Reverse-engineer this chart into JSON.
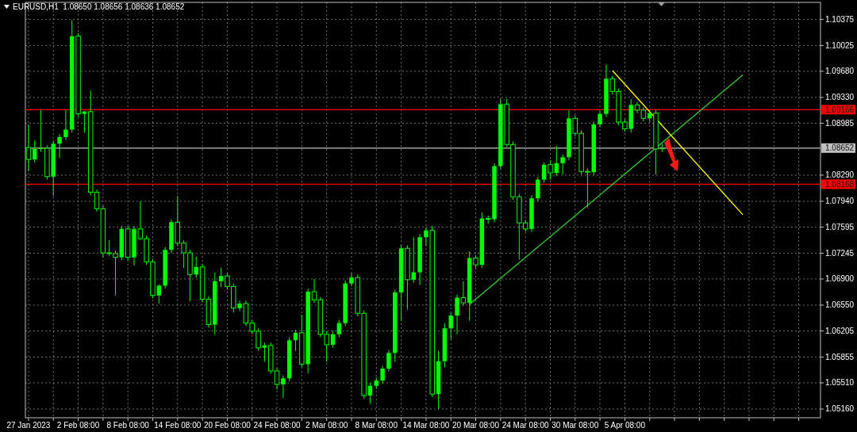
{
  "chart_data": {
    "type": "candlestick",
    "title": "EURUSD,H1  1.08650 1.08656 1.08636 1.08652",
    "color": "#00ff00",
    "grid": true,
    "ylim": [
      1.05043,
      1.10602
    ],
    "yticks": [
      {
        "value": 1.0516,
        "label": "1.05160"
      },
      {
        "value": 1.0551,
        "label": "1.05510"
      },
      1.05855,
      1.06205,
      {
        "value": 1.0655,
        "label": "1.06550"
      },
      {
        "value": 1.069,
        "label": "1.06900"
      },
      1.07245,
      1.07595,
      {
        "value": 1.0794,
        "label": "1.07940"
      },
      {
        "value": 1.0829,
        "label": "1.08290"
      },
      1.08985,
      {
        "value": 1.0933,
        "label": "1.09330"
      },
      {
        "value": 1.0968,
        "label": "1.09680"
      },
      1.10025,
      1.10375
    ],
    "ref_lines": [
      {
        "axis": "y",
        "value": 1.09166,
        "label": "1.09166",
        "color": "#ff0000"
      },
      {
        "axis": "y",
        "value": 1.08168,
        "label": "1.08168",
        "color": "#ff0000"
      },
      {
        "axis": "y",
        "value": 1.08652,
        "label": "1.08652",
        "color": "#c0c0c0"
      }
    ],
    "categories": [
      "27 Jan 2023",
      null,
      null,
      null,
      null,
      null,
      null,
      null,
      "2 Feb 08:00",
      null,
      null,
      null,
      null,
      null,
      null,
      null,
      "8 Feb 08:00",
      null,
      null,
      null,
      null,
      null,
      null,
      null,
      "14 Feb 08:00",
      null,
      null,
      null,
      null,
      null,
      null,
      null,
      "20 Feb 08:00",
      null,
      null,
      null,
      null,
      null,
      null,
      null,
      "24 Feb 08:00",
      null,
      null,
      null,
      null,
      null,
      null,
      null,
      "2 Mar 08:00",
      null,
      null,
      null,
      null,
      null,
      null,
      null,
      "8 Mar 08:00",
      null,
      null,
      null,
      null,
      null,
      null,
      null,
      "14 Mar 08:00",
      null,
      null,
      null,
      null,
      null,
      null,
      null,
      "20 Mar 08:00",
      null,
      null,
      null,
      null,
      null,
      null,
      null,
      "24 Mar 08:00",
      null,
      null,
      null,
      null,
      null,
      null,
      null,
      "30 Mar 08:00",
      null,
      null,
      null,
      null,
      null,
      null,
      null,
      "5 Apr 08:00",
      null,
      null,
      null,
      null,
      null,
      null,
      null,
      null,
      null,
      null,
      null,
      null,
      null,
      null,
      null,
      null,
      null,
      null,
      null,
      null,
      null,
      null,
      null,
      null,
      null,
      null,
      null,
      null,
      null,
      null,
      null
    ],
    "series": [
      {
        "type": "line",
        "color": "#32cd32",
        "values": [
          null,
          null,
          null,
          null,
          null,
          null,
          null,
          null,
          null,
          null,
          null,
          null,
          null,
          null,
          null,
          null,
          null,
          null,
          null,
          null,
          null,
          null,
          null,
          null,
          null,
          null,
          null,
          null,
          null,
          null,
          null,
          null,
          null,
          null,
          null,
          null,
          null,
          null,
          null,
          null,
          null,
          null,
          null,
          null,
          null,
          null,
          null,
          null,
          null,
          null,
          null,
          null,
          null,
          null,
          null,
          null,
          null,
          null,
          null,
          null,
          null,
          null,
          null,
          null,
          null,
          null,
          null,
          null,
          null,
          null,
          null,
          1.0656,
          null,
          null,
          null,
          null,
          null,
          null,
          null,
          null,
          null,
          null,
          null,
          null,
          null,
          null,
          null,
          null,
          null,
          null,
          null,
          null,
          null,
          null,
          null,
          null,
          null,
          null,
          null,
          null,
          null,
          null,
          null,
          null,
          null,
          null,
          null,
          null,
          null,
          null,
          null,
          null,
          null,
          null,
          null,
          1.0963,
          null,
          null,
          null,
          null,
          null,
          null,
          null,
          null,
          null,
          null,
          null,
          null
        ]
      },
      {
        "type": "line",
        "color": "#ffff00",
        "values": [
          null,
          null,
          null,
          null,
          null,
          null,
          null,
          null,
          null,
          null,
          null,
          null,
          null,
          null,
          null,
          null,
          null,
          null,
          null,
          null,
          null,
          null,
          null,
          null,
          null,
          null,
          null,
          null,
          null,
          null,
          null,
          null,
          null,
          null,
          null,
          null,
          null,
          null,
          null,
          null,
          null,
          null,
          null,
          null,
          null,
          null,
          null,
          null,
          null,
          null,
          null,
          null,
          null,
          null,
          null,
          null,
          null,
          null,
          null,
          null,
          null,
          null,
          null,
          null,
          null,
          null,
          null,
          null,
          null,
          null,
          null,
          null,
          null,
          null,
          null,
          null,
          null,
          null,
          null,
          null,
          null,
          null,
          null,
          null,
          null,
          null,
          null,
          null,
          null,
          null,
          null,
          null,
          null,
          null,
          1.0969,
          null,
          null,
          null,
          null,
          null,
          null,
          null,
          null,
          null,
          null,
          null,
          null,
          null,
          null,
          null,
          null,
          null,
          null,
          null,
          null,
          1.0776,
          null,
          null,
          null,
          null,
          null,
          null,
          null,
          null,
          null,
          null,
          null,
          null
        ]
      }
    ],
    "ohlc": [
      [
        1.0866,
        1.0897,
        1.0834,
        1.085
      ],
      [
        1.085,
        1.0875,
        1.0846,
        1.0864
      ],
      [
        1.0864,
        1.0916,
        1.086,
        1.0865
      ],
      [
        1.0865,
        1.0869,
        1.0823,
        1.0827
      ],
      [
        1.0827,
        1.0875,
        1.0801,
        1.0871
      ],
      [
        1.0871,
        1.0884,
        1.0852,
        1.088
      ],
      [
        1.088,
        1.0916,
        1.0876,
        1.089
      ],
      [
        1.089,
        1.1036,
        1.0886,
        1.1015
      ],
      [
        1.1015,
        1.1019,
        1.0907,
        1.0911
      ],
      [
        1.0911,
        1.0915,
        1.0886,
        1.0914
      ],
      [
        1.0914,
        1.0942,
        1.0802,
        1.0806
      ],
      [
        1.0806,
        1.081,
        1.078,
        1.0784
      ],
      [
        1.0784,
        1.0788,
        1.0719,
        1.0725
      ],
      [
        1.0725,
        1.0742,
        1.0721,
        1.0724
      ],
      [
        1.0724,
        1.0728,
        1.0668,
        1.0719
      ],
      [
        1.0719,
        1.0761,
        1.0715,
        1.0757
      ],
      [
        1.0757,
        1.0761,
        1.0715,
        1.0719
      ],
      [
        1.0719,
        1.0761,
        1.0708,
        1.0757
      ],
      [
        1.0757,
        1.0794,
        1.0742,
        1.0744
      ],
      [
        1.0744,
        1.0748,
        1.0709,
        1.0713
      ],
      [
        1.0713,
        1.0717,
        1.0664,
        1.0668
      ],
      [
        1.0668,
        1.0683,
        1.0657,
        1.0681
      ],
      [
        1.0681,
        1.0733,
        1.0677,
        1.0729
      ],
      [
        1.0729,
        1.077,
        1.0725,
        1.0766
      ],
      [
        1.0766,
        1.0801,
        1.0734,
        1.0738
      ],
      [
        1.0738,
        1.0742,
        1.0705,
        1.0725
      ],
      [
        1.0725,
        1.0729,
        1.066,
        1.0696
      ],
      [
        1.0696,
        1.072,
        1.0692,
        1.0706
      ],
      [
        1.0706,
        1.071,
        1.0659,
        1.0663
      ],
      [
        1.0663,
        1.0667,
        1.0625,
        1.0629
      ],
      [
        1.0629,
        1.0698,
        1.0616,
        1.0687
      ],
      [
        1.0687,
        1.0705,
        1.0679,
        1.0694
      ],
      [
        1.0694,
        1.0698,
        1.0676,
        1.068
      ],
      [
        1.068,
        1.0684,
        1.0645,
        1.0651
      ],
      [
        1.0651,
        1.0661,
        1.0647,
        1.0657
      ],
      [
        1.0657,
        1.0661,
        1.0627,
        1.0631
      ],
      [
        1.0631,
        1.0635,
        1.0616,
        1.062
      ],
      [
        1.062,
        1.0624,
        1.0594,
        1.0598
      ],
      [
        1.0598,
        1.0605,
        1.0579,
        1.0601
      ],
      [
        1.0601,
        1.0605,
        1.0563,
        1.0567
      ],
      [
        1.0567,
        1.0571,
        1.0542,
        1.0549
      ],
      [
        1.0549,
        1.0561,
        1.0531,
        1.0557
      ],
      [
        1.0557,
        1.0612,
        1.0553,
        1.0608
      ],
      [
        1.0608,
        1.0622,
        1.0594,
        1.0618
      ],
      [
        1.0618,
        1.0642,
        1.0572,
        1.0576
      ],
      [
        1.0576,
        1.0677,
        1.0564,
        1.0673
      ],
      [
        1.0673,
        1.069,
        1.0658,
        1.0662
      ],
      [
        1.0662,
        1.0666,
        1.0612,
        1.0616
      ],
      [
        1.0616,
        1.062,
        1.0579,
        1.0602
      ],
      [
        1.0602,
        1.062,
        1.0598,
        1.0616
      ],
      [
        1.0616,
        1.0635,
        1.0612,
        1.0631
      ],
      [
        1.0631,
        1.0688,
        1.0627,
        1.0684
      ],
      [
        1.0684,
        1.0698,
        1.068,
        1.0692
      ],
      [
        1.0692,
        1.0696,
        1.064,
        1.0644
      ],
      [
        1.0644,
        1.0648,
        1.053,
        1.0534
      ],
      [
        1.0534,
        1.0551,
        1.0523,
        1.0547
      ],
      [
        1.0547,
        1.0558,
        1.0543,
        1.0554
      ],
      [
        1.0554,
        1.0574,
        1.055,
        1.057
      ],
      [
        1.057,
        1.0595,
        1.0566,
        1.0591
      ],
      [
        1.0591,
        1.0676,
        1.0579,
        1.0672
      ],
      [
        1.0672,
        1.0735,
        1.0634,
        1.0731
      ],
      [
        1.0731,
        1.0735,
        1.0649,
        1.0689
      ],
      [
        1.0689,
        1.0746,
        1.0685,
        1.0699
      ],
      [
        1.0699,
        1.075,
        1.0682,
        1.0746
      ],
      [
        1.0746,
        1.0759,
        1.0734,
        1.0755
      ],
      [
        1.0755,
        1.0761,
        1.0532,
        1.0536
      ],
      [
        1.0536,
        1.0594,
        1.0516,
        1.058
      ],
      [
        1.058,
        1.0631,
        1.0572,
        1.0624
      ],
      [
        1.0624,
        1.0645,
        1.0609,
        1.0641
      ],
      [
        1.0641,
        1.0669,
        1.0616,
        1.0665
      ],
      [
        1.0665,
        1.0687,
        1.0654,
        1.0658
      ],
      [
        1.0658,
        1.0727,
        1.0634,
        1.0718
      ],
      [
        1.0718,
        1.0722,
        1.0705,
        1.0709
      ],
      [
        1.0709,
        1.0779,
        1.0705,
        1.0771
      ],
      [
        1.0771,
        1.0775,
        1.0764,
        1.077
      ],
      [
        1.077,
        1.0845,
        1.0766,
        1.0841
      ],
      [
        1.0841,
        1.0931,
        1.0837,
        1.0924
      ],
      [
        1.0924,
        1.0931,
        1.0867,
        1.087
      ],
      [
        1.087,
        1.0874,
        1.0796,
        1.08
      ],
      [
        1.08,
        1.0804,
        1.0716,
        1.0765
      ],
      [
        1.0765,
        1.0769,
        1.0753,
        1.0757
      ],
      [
        1.0757,
        1.0802,
        1.0753,
        1.0798
      ],
      [
        1.0798,
        1.0827,
        1.0794,
        1.0823
      ],
      [
        1.0823,
        1.0846,
        1.0819,
        1.0843
      ],
      [
        1.0843,
        1.0849,
        1.0823,
        1.0832
      ],
      [
        1.0832,
        1.0868,
        1.0828,
        1.0845
      ],
      [
        1.0845,
        1.0857,
        1.083,
        1.0853
      ],
      [
        1.0853,
        1.0916,
        1.0849,
        1.0905
      ],
      [
        1.0905,
        1.0909,
        1.0881,
        1.0885
      ],
      [
        1.0885,
        1.0889,
        1.083,
        1.0834
      ],
      [
        1.0834,
        1.0838,
        1.0786,
        1.0833
      ],
      [
        1.0833,
        1.0901,
        1.0829,
        1.0897
      ],
      [
        1.0897,
        1.0915,
        1.0893,
        1.0911
      ],
      [
        1.0911,
        1.0977,
        1.0907,
        1.0958
      ],
      [
        1.0958,
        1.0962,
        1.0937,
        1.0941
      ],
      [
        1.0941,
        1.0945,
        1.0896,
        1.09
      ],
      [
        1.09,
        1.0904,
        1.0887,
        1.0891
      ],
      [
        1.0891,
        1.0931,
        1.0886,
        1.0923
      ],
      [
        1.0923,
        1.0927,
        1.0912,
        1.0916
      ],
      [
        1.0916,
        1.092,
        1.0901,
        1.0905
      ],
      [
        1.0905,
        1.0916,
        1.0901,
        1.0912
      ],
      [
        1.0912,
        1.0916,
        1.083,
        1.0864
      ],
      [
        1.0864,
        1.0871,
        1.086,
        1.0865
      ],
      null,
      null,
      null,
      null,
      null,
      null,
      null,
      null,
      null,
      null,
      null,
      null,
      null,
      null,
      null,
      null,
      null,
      null,
      null,
      null,
      null,
      null,
      null,
      null,
      null
    ]
  }
}
